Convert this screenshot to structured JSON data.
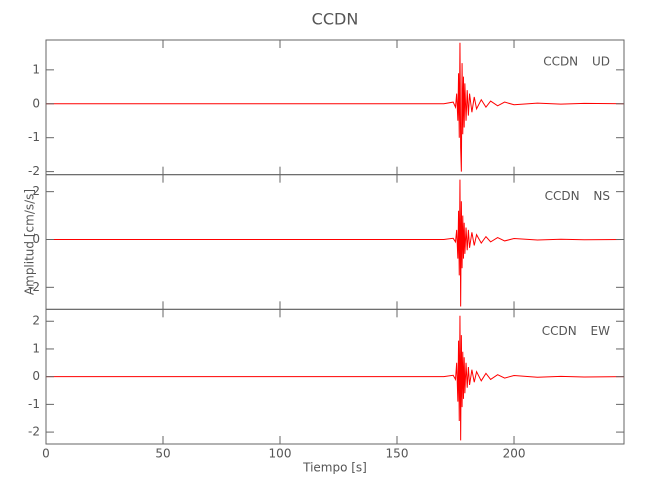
{
  "chart_data": {
    "type": "line",
    "title": "CCDN",
    "x_label": "Tiempo [s]",
    "y_label": "Amplitud [cm/s/s]",
    "x": [
      0,
      25,
      50,
      75,
      100,
      125,
      150,
      170,
      174,
      175,
      175.5,
      176,
      176.3,
      176.6,
      176.9,
      177.2,
      177.5,
      177.8,
      178.1,
      178.4,
      178.7,
      179,
      179.5,
      180,
      180.5,
      181,
      182,
      183,
      184,
      186,
      188,
      190,
      193,
      196,
      200,
      210,
      220,
      230,
      247
    ],
    "xlim": [
      0,
      247
    ],
    "xticks": [
      0,
      50,
      100,
      150,
      200
    ],
    "panels": [
      {
        "ylim": [
          -2.09,
          1.88
        ],
        "yticks": [
          -2,
          -1,
          0,
          1
        ],
        "series": [
          {
            "name": "CCDN UD",
            "color": "#ff0000",
            "values": [
              0,
              0,
              0,
              0,
              0,
              0,
              0,
              0,
              0.05,
              -0.1,
              0.3,
              -0.5,
              0.9,
              -1.0,
              1.8,
              -1.3,
              -2.0,
              1.2,
              -0.9,
              0.8,
              -0.7,
              0.6,
              -0.5,
              0.4,
              -0.35,
              0.3,
              -0.25,
              0.2,
              -0.15,
              0.12,
              -0.1,
              0.08,
              -0.06,
              0.05,
              -0.03,
              0.02,
              -0.01,
              0.01,
              0
            ]
          }
        ]
      },
      {
        "ylim": [
          -2.92,
          2.71
        ],
        "yticks": [
          -2,
          0,
          2
        ],
        "series": [
          {
            "name": "CCDN NS",
            "color": "#ff0000",
            "values": [
              0,
              0,
              0,
              0,
              0,
              0,
              0,
              0,
              0.05,
              -0.1,
              0.4,
              -0.8,
              1.2,
              -1.5,
              2.5,
              -2.8,
              1.6,
              -1.2,
              1.0,
              -0.8,
              0.7,
              -0.6,
              0.5,
              -0.45,
              0.4,
              -0.35,
              0.3,
              -0.25,
              0.2,
              -0.15,
              0.12,
              -0.1,
              0.08,
              -0.06,
              0.04,
              -0.02,
              0.01,
              -0.01,
              0
            ]
          }
        ]
      },
      {
        "ylim": [
          -2.43,
          2.43
        ],
        "yticks": [
          -2,
          -1,
          0,
          1,
          2
        ],
        "series": [
          {
            "name": "CCDN EW",
            "color": "#ff0000",
            "values": [
              0,
              0,
              0,
              0,
              0,
              0,
              0,
              0,
              0.05,
              -0.1,
              0.5,
              -0.9,
              1.3,
              -1.6,
              2.2,
              -2.3,
              1.5,
              -1.1,
              0.9,
              -0.8,
              0.7,
              -0.6,
              0.5,
              -0.4,
              0.35,
              -0.3,
              0.25,
              -0.2,
              0.18,
              -0.15,
              0.12,
              -0.1,
              0.07,
              -0.05,
              0.04,
              -0.02,
              0.01,
              -0.01,
              0
            ]
          }
        ]
      }
    ]
  }
}
